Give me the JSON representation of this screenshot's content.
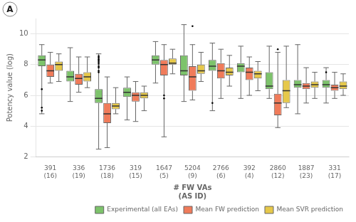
{
  "chart_data": {
    "type": "box",
    "xlabel": "# FW VAs\n(AS ID)",
    "ylabel": "Potency value (log)",
    "annotations": [
      "A"
    ],
    "categories": [
      "391\n(16)",
      "336\n(19)",
      "1736\n(18)",
      "319\n(15)",
      "1647\n(5)",
      "5204\n(9)",
      "2766\n(6)",
      "392\n(4)",
      "2860\n(12)",
      "1887\n(23)",
      "331\n(17)"
    ],
    "ylim": [
      2,
      11
    ],
    "yticks": [
      2,
      4,
      6,
      8,
      10
    ],
    "grid": "y",
    "legend": "lower right",
    "series": [
      {
        "name": "Experimental (all EAs)",
        "color": "#7dc36b",
        "values": [
          {
            "whislo": 4.8,
            "q1": 7.9,
            "med": 8.3,
            "q3": 8.6,
            "whishi": 9.3,
            "fliers": [
              6.4,
              5.2,
              5.0
            ]
          },
          {
            "whislo": 5.6,
            "q1": 6.9,
            "med": 7.2,
            "q3": 7.6,
            "whishi": 9.1,
            "fliers": []
          },
          {
            "whislo": 2.5,
            "q1": 5.5,
            "med": 5.8,
            "q3": 6.4,
            "whishi": 8.7,
            "fliers": [
              8.55,
              8.45,
              8.35,
              8.25,
              8.15,
              8.05,
              7.9,
              7.8,
              7.6,
              7.5
            ]
          },
          {
            "whislo": 4.4,
            "q1": 5.9,
            "med": 6.2,
            "q3": 6.5,
            "whishi": 7.2,
            "fliers": []
          },
          {
            "whislo": 6.8,
            "q1": 8.0,
            "med": 8.3,
            "q3": 8.6,
            "whishi": 9.5,
            "fliers": []
          },
          {
            "whislo": 5.6,
            "q1": 7.3,
            "med": 7.6,
            "q3": 8.6,
            "whishi": 10.6,
            "fliers": []
          },
          {
            "whislo": 5.0,
            "q1": 7.6,
            "med": 7.9,
            "q3": 8.3,
            "whishi": 9.4,
            "fliers": [
              5.5
            ]
          },
          {
            "whislo": 5.8,
            "q1": 7.5,
            "med": 7.9,
            "q3": 8.1,
            "whishi": 9.2,
            "fliers": []
          },
          {
            "whislo": 5.8,
            "q1": 6.4,
            "med": 6.6,
            "q3": 7.5,
            "whishi": 9.2,
            "fliers": []
          },
          {
            "whislo": 4.8,
            "q1": 6.5,
            "med": 6.7,
            "q3": 7.0,
            "whishi": 9.3,
            "fliers": []
          },
          {
            "whislo": 5.5,
            "q1": 6.5,
            "med": 6.7,
            "q3": 7.0,
            "whishi": 7.8,
            "fliers": [
              7.5
            ]
          }
        ]
      },
      {
        "name": "Mean FW prediction",
        "color": "#f07b5a",
        "values": [
          {
            "whislo": 6.8,
            "q1": 7.2,
            "med": 7.6,
            "q3": 8.0,
            "whishi": 8.8,
            "fliers": []
          },
          {
            "whislo": 6.2,
            "q1": 6.7,
            "med": 7.1,
            "q3": 7.4,
            "whishi": 8.5,
            "fliers": []
          },
          {
            "whislo": 2.6,
            "q1": 4.2,
            "med": 4.8,
            "q3": 5.5,
            "whishi": 7.2,
            "fliers": []
          },
          {
            "whislo": 4.3,
            "q1": 5.6,
            "med": 6.0,
            "q3": 6.2,
            "whishi": 6.9,
            "fliers": []
          },
          {
            "whislo": 3.3,
            "q1": 7.3,
            "med": 8.0,
            "q3": 8.3,
            "whishi": 9.3,
            "fliers": [
              5.8,
              6.0
            ]
          },
          {
            "whislo": 5.7,
            "q1": 6.3,
            "med": 7.2,
            "q3": 7.9,
            "whishi": 9.3,
            "fliers": [
              10.5
            ]
          },
          {
            "whislo": 5.8,
            "q1": 7.1,
            "med": 7.6,
            "q3": 8.1,
            "whishi": 9.0,
            "fliers": []
          },
          {
            "whislo": 6.0,
            "q1": 7.0,
            "med": 7.5,
            "q3": 7.8,
            "whishi": 8.5,
            "fliers": []
          },
          {
            "whislo": 3.9,
            "q1": 4.7,
            "med": 5.5,
            "q3": 6.1,
            "whishi": 8.8,
            "fliers": [
              9.0
            ]
          },
          {
            "whislo": 5.5,
            "q1": 6.4,
            "med": 6.6,
            "q3": 6.8,
            "whishi": 7.8,
            "fliers": []
          },
          {
            "whislo": 5.8,
            "q1": 6.3,
            "med": 6.5,
            "q3": 6.7,
            "whishi": 7.5,
            "fliers": []
          }
        ]
      },
      {
        "name": "Mean SVR prediction",
        "color": "#e6c84a",
        "values": [
          {
            "whislo": 6.9,
            "q1": 7.6,
            "med": 8.0,
            "q3": 8.2,
            "whishi": 8.7,
            "fliers": []
          },
          {
            "whislo": 6.5,
            "q1": 6.9,
            "med": 7.2,
            "q3": 7.5,
            "whishi": 8.5,
            "fliers": []
          },
          {
            "whislo": 4.8,
            "q1": 5.1,
            "med": 5.3,
            "q3": 5.5,
            "whishi": 6.5,
            "fliers": []
          },
          {
            "whislo": 5.0,
            "q1": 5.8,
            "med": 6.0,
            "q3": 6.2,
            "whishi": 6.6,
            "fliers": []
          },
          {
            "whislo": 7.4,
            "q1": 8.0,
            "med": 8.1,
            "q3": 8.4,
            "whishi": 9.0,
            "fliers": []
          },
          {
            "whislo": 6.9,
            "q1": 7.4,
            "med": 7.6,
            "q3": 8.0,
            "whishi": 8.8,
            "fliers": []
          },
          {
            "whislo": 6.6,
            "q1": 7.3,
            "med": 7.5,
            "q3": 7.8,
            "whishi": 8.6,
            "fliers": []
          },
          {
            "whislo": 6.3,
            "q1": 7.1,
            "med": 7.4,
            "q3": 7.6,
            "whishi": 8.2,
            "fliers": []
          },
          {
            "whislo": 5.2,
            "q1": 5.5,
            "med": 6.3,
            "q3": 7.0,
            "whishi": 9.2,
            "fliers": []
          },
          {
            "whislo": 5.8,
            "q1": 6.5,
            "med": 6.7,
            "q3": 6.9,
            "whishi": 7.5,
            "fliers": []
          },
          {
            "whislo": 6.0,
            "q1": 6.4,
            "med": 6.6,
            "q3": 6.9,
            "whishi": 7.4,
            "fliers": []
          }
        ]
      }
    ]
  }
}
